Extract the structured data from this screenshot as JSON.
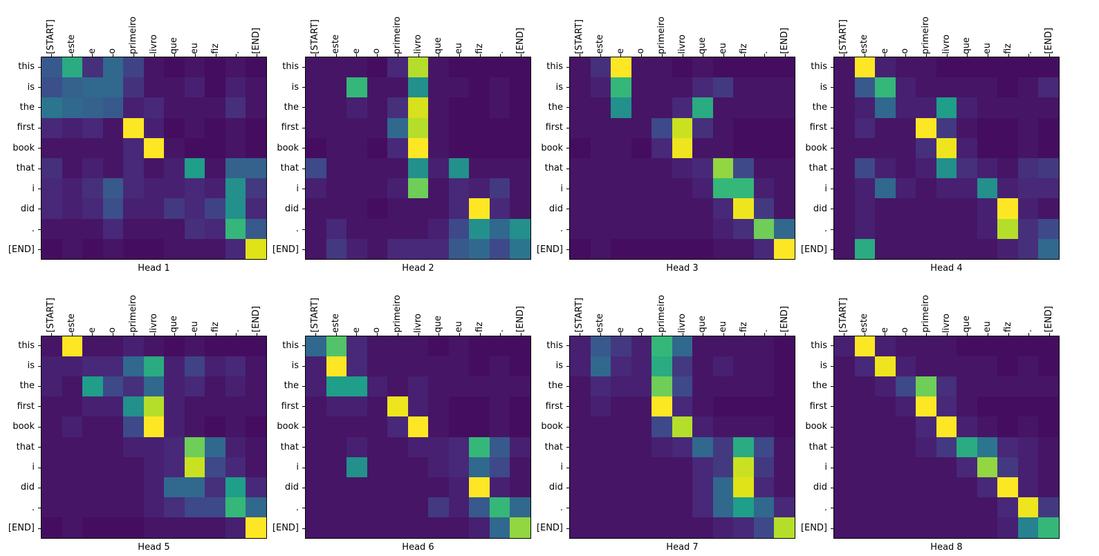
{
  "figure": {
    "background": "#ffffff",
    "colormap": "viridis",
    "colormap_min_color": "#440154",
    "colormap_max_color": "#fde725"
  },
  "chart_data": {
    "type": "heatmap",
    "colormap": "viridis",
    "x_labels": [
      "[START]",
      "este",
      "e",
      "o",
      "primeiro",
      "livro",
      "que",
      "eu",
      "fiz",
      ".",
      "[END]"
    ],
    "y_labels": [
      "this",
      "is",
      "the",
      "first",
      "book",
      "that",
      "i",
      "did",
      ".",
      "[END]"
    ],
    "value_range": [
      0,
      1
    ],
    "heads": [
      {
        "title": "Head 1",
        "values": [
          [
            0.25,
            0.55,
            0.12,
            0.3,
            0.18,
            0.05,
            0.03,
            0.05,
            0.03,
            0.05,
            0.03
          ],
          [
            0.22,
            0.28,
            0.3,
            0.3,
            0.13,
            0.05,
            0.05,
            0.08,
            0.03,
            0.08,
            0.05
          ],
          [
            0.35,
            0.3,
            0.28,
            0.25,
            0.08,
            0.1,
            0.05,
            0.05,
            0.05,
            0.12,
            0.05
          ],
          [
            0.1,
            0.08,
            0.1,
            0.05,
            1.0,
            0.08,
            0.03,
            0.05,
            0.03,
            0.05,
            0.03
          ],
          [
            0.05,
            0.05,
            0.05,
            0.05,
            0.1,
            1.0,
            0.05,
            0.03,
            0.03,
            0.05,
            0.03
          ],
          [
            0.12,
            0.05,
            0.08,
            0.05,
            0.1,
            0.05,
            0.08,
            0.5,
            0.05,
            0.28,
            0.28
          ],
          [
            0.1,
            0.08,
            0.12,
            0.25,
            0.1,
            0.08,
            0.08,
            0.1,
            0.08,
            0.45,
            0.15
          ],
          [
            0.1,
            0.08,
            0.1,
            0.22,
            0.08,
            0.08,
            0.15,
            0.1,
            0.18,
            0.45,
            0.1
          ],
          [
            0.05,
            0.05,
            0.05,
            0.1,
            0.05,
            0.05,
            0.05,
            0.12,
            0.1,
            0.6,
            0.25
          ],
          [
            0.03,
            0.05,
            0.03,
            0.05,
            0.03,
            0.03,
            0.05,
            0.05,
            0.05,
            0.1,
            0.9
          ]
        ]
      },
      {
        "title": "Head 2",
        "values": [
          [
            0.05,
            0.05,
            0.05,
            0.03,
            0.1,
            0.8,
            0.05,
            0.03,
            0.03,
            0.03,
            0.03
          ],
          [
            0.05,
            0.05,
            0.6,
            0.05,
            0.05,
            0.45,
            0.05,
            0.05,
            0.03,
            0.05,
            0.03
          ],
          [
            0.05,
            0.05,
            0.08,
            0.05,
            0.12,
            0.88,
            0.05,
            0.03,
            0.03,
            0.05,
            0.03
          ],
          [
            0.05,
            0.05,
            0.05,
            0.05,
            0.3,
            0.8,
            0.05,
            0.03,
            0.03,
            0.03,
            0.03
          ],
          [
            0.03,
            0.05,
            0.05,
            0.03,
            0.1,
            1.0,
            0.05,
            0.03,
            0.03,
            0.03,
            0.03
          ],
          [
            0.2,
            0.05,
            0.05,
            0.05,
            0.05,
            0.45,
            0.08,
            0.45,
            0.05,
            0.05,
            0.05
          ],
          [
            0.08,
            0.05,
            0.05,
            0.05,
            0.08,
            0.7,
            0.05,
            0.1,
            0.08,
            0.15,
            0.05
          ],
          [
            0.05,
            0.05,
            0.05,
            0.03,
            0.05,
            0.05,
            0.05,
            0.1,
            1.0,
            0.1,
            0.05
          ],
          [
            0.05,
            0.1,
            0.05,
            0.05,
            0.05,
            0.05,
            0.08,
            0.2,
            0.45,
            0.3,
            0.45
          ],
          [
            0.05,
            0.15,
            0.08,
            0.05,
            0.1,
            0.1,
            0.1,
            0.25,
            0.3,
            0.2,
            0.35
          ]
        ]
      },
      {
        "title": "Head 3",
        "values": [
          [
            0.05,
            0.12,
            1.0,
            0.05,
            0.05,
            0.03,
            0.05,
            0.03,
            0.03,
            0.03,
            0.03
          ],
          [
            0.05,
            0.08,
            0.6,
            0.05,
            0.05,
            0.05,
            0.1,
            0.15,
            0.05,
            0.05,
            0.05
          ],
          [
            0.05,
            0.05,
            0.45,
            0.05,
            0.05,
            0.1,
            0.55,
            0.05,
            0.05,
            0.05,
            0.05
          ],
          [
            0.05,
            0.05,
            0.05,
            0.05,
            0.2,
            0.85,
            0.12,
            0.05,
            0.03,
            0.03,
            0.03
          ],
          [
            0.03,
            0.05,
            0.05,
            0.03,
            0.1,
            0.95,
            0.05,
            0.05,
            0.03,
            0.03,
            0.03
          ],
          [
            0.05,
            0.05,
            0.05,
            0.05,
            0.05,
            0.08,
            0.1,
            0.75,
            0.2,
            0.05,
            0.05
          ],
          [
            0.05,
            0.05,
            0.05,
            0.05,
            0.05,
            0.05,
            0.08,
            0.6,
            0.6,
            0.08,
            0.05
          ],
          [
            0.05,
            0.05,
            0.05,
            0.05,
            0.05,
            0.05,
            0.05,
            0.1,
            0.95,
            0.15,
            0.05
          ],
          [
            0.05,
            0.05,
            0.05,
            0.05,
            0.05,
            0.05,
            0.05,
            0.08,
            0.12,
            0.7,
            0.3
          ],
          [
            0.03,
            0.05,
            0.03,
            0.03,
            0.03,
            0.03,
            0.03,
            0.05,
            0.05,
            0.1,
            1.0
          ]
        ]
      },
      {
        "title": "Head 4",
        "values": [
          [
            0.05,
            1.0,
            0.08,
            0.05,
            0.05,
            0.03,
            0.03,
            0.03,
            0.03,
            0.03,
            0.03
          ],
          [
            0.05,
            0.25,
            0.6,
            0.08,
            0.05,
            0.05,
            0.05,
            0.05,
            0.03,
            0.05,
            0.1
          ],
          [
            0.05,
            0.08,
            0.3,
            0.08,
            0.08,
            0.5,
            0.08,
            0.05,
            0.05,
            0.05,
            0.05
          ],
          [
            0.05,
            0.1,
            0.05,
            0.05,
            1.0,
            0.15,
            0.05,
            0.03,
            0.03,
            0.05,
            0.03
          ],
          [
            0.05,
            0.05,
            0.05,
            0.05,
            0.12,
            0.95,
            0.08,
            0.03,
            0.03,
            0.05,
            0.03
          ],
          [
            0.05,
            0.2,
            0.08,
            0.05,
            0.08,
            0.45,
            0.12,
            0.08,
            0.05,
            0.12,
            0.15
          ],
          [
            0.05,
            0.08,
            0.3,
            0.08,
            0.05,
            0.08,
            0.08,
            0.45,
            0.08,
            0.1,
            0.1
          ],
          [
            0.05,
            0.08,
            0.05,
            0.05,
            0.05,
            0.05,
            0.05,
            0.08,
            1.0,
            0.08,
            0.05
          ],
          [
            0.05,
            0.08,
            0.05,
            0.05,
            0.05,
            0.05,
            0.05,
            0.08,
            0.8,
            0.12,
            0.2
          ],
          [
            0.05,
            0.55,
            0.05,
            0.05,
            0.05,
            0.05,
            0.05,
            0.05,
            0.08,
            0.12,
            0.3
          ]
        ]
      },
      {
        "title": "Head 5",
        "values": [
          [
            0.05,
            1.0,
            0.05,
            0.05,
            0.08,
            0.05,
            0.03,
            0.05,
            0.03,
            0.03,
            0.03
          ],
          [
            0.08,
            0.08,
            0.1,
            0.1,
            0.3,
            0.55,
            0.08,
            0.18,
            0.08,
            0.1,
            0.05
          ],
          [
            0.08,
            0.05,
            0.5,
            0.2,
            0.12,
            0.3,
            0.08,
            0.1,
            0.05,
            0.08,
            0.05
          ],
          [
            0.05,
            0.05,
            0.08,
            0.08,
            0.45,
            0.8,
            0.08,
            0.05,
            0.05,
            0.05,
            0.05
          ],
          [
            0.05,
            0.08,
            0.05,
            0.05,
            0.2,
            1.0,
            0.08,
            0.05,
            0.03,
            0.05,
            0.03
          ],
          [
            0.05,
            0.05,
            0.05,
            0.05,
            0.08,
            0.08,
            0.1,
            0.7,
            0.3,
            0.08,
            0.05
          ],
          [
            0.05,
            0.05,
            0.05,
            0.05,
            0.05,
            0.08,
            0.1,
            0.85,
            0.2,
            0.1,
            0.05
          ],
          [
            0.05,
            0.05,
            0.05,
            0.05,
            0.05,
            0.08,
            0.3,
            0.3,
            0.12,
            0.5,
            0.1
          ],
          [
            0.05,
            0.05,
            0.05,
            0.05,
            0.05,
            0.08,
            0.12,
            0.2,
            0.2,
            0.6,
            0.3
          ],
          [
            0.03,
            0.05,
            0.03,
            0.03,
            0.03,
            0.05,
            0.05,
            0.05,
            0.05,
            0.08,
            1.0
          ]
        ]
      },
      {
        "title": "Head 6",
        "values": [
          [
            0.3,
            0.65,
            0.1,
            0.05,
            0.05,
            0.05,
            0.03,
            0.05,
            0.03,
            0.03,
            0.03
          ],
          [
            0.08,
            1.0,
            0.1,
            0.05,
            0.05,
            0.05,
            0.05,
            0.05,
            0.03,
            0.05,
            0.03
          ],
          [
            0.08,
            0.5,
            0.5,
            0.08,
            0.05,
            0.08,
            0.05,
            0.05,
            0.05,
            0.05,
            0.05
          ],
          [
            0.05,
            0.08,
            0.08,
            0.05,
            0.95,
            0.08,
            0.05,
            0.03,
            0.03,
            0.05,
            0.03
          ],
          [
            0.05,
            0.05,
            0.05,
            0.05,
            0.1,
            1.0,
            0.05,
            0.03,
            0.03,
            0.05,
            0.03
          ],
          [
            0.05,
            0.05,
            0.08,
            0.05,
            0.05,
            0.08,
            0.08,
            0.1,
            0.6,
            0.25,
            0.08
          ],
          [
            0.05,
            0.05,
            0.45,
            0.05,
            0.05,
            0.05,
            0.08,
            0.1,
            0.3,
            0.2,
            0.05
          ],
          [
            0.05,
            0.05,
            0.05,
            0.05,
            0.05,
            0.05,
            0.05,
            0.08,
            1.0,
            0.08,
            0.05
          ],
          [
            0.05,
            0.05,
            0.05,
            0.05,
            0.05,
            0.05,
            0.15,
            0.08,
            0.25,
            0.6,
            0.3
          ],
          [
            0.05,
            0.05,
            0.05,
            0.05,
            0.05,
            0.05,
            0.05,
            0.05,
            0.08,
            0.3,
            0.75
          ]
        ]
      },
      {
        "title": "Head 7",
        "values": [
          [
            0.08,
            0.25,
            0.15,
            0.08,
            0.6,
            0.3,
            0.05,
            0.05,
            0.05,
            0.05,
            0.03
          ],
          [
            0.08,
            0.3,
            0.1,
            0.08,
            0.55,
            0.15,
            0.05,
            0.08,
            0.05,
            0.05,
            0.03
          ],
          [
            0.05,
            0.1,
            0.08,
            0.08,
            0.7,
            0.2,
            0.05,
            0.05,
            0.05,
            0.05,
            0.03
          ],
          [
            0.05,
            0.08,
            0.05,
            0.05,
            1.0,
            0.1,
            0.05,
            0.03,
            0.03,
            0.03,
            0.03
          ],
          [
            0.05,
            0.05,
            0.05,
            0.05,
            0.2,
            0.8,
            0.08,
            0.05,
            0.05,
            0.05,
            0.03
          ],
          [
            0.05,
            0.05,
            0.05,
            0.05,
            0.08,
            0.1,
            0.3,
            0.15,
            0.55,
            0.2,
            0.05
          ],
          [
            0.05,
            0.05,
            0.05,
            0.05,
            0.05,
            0.05,
            0.1,
            0.15,
            0.85,
            0.15,
            0.05
          ],
          [
            0.05,
            0.05,
            0.05,
            0.05,
            0.05,
            0.05,
            0.1,
            0.3,
            0.9,
            0.1,
            0.05
          ],
          [
            0.05,
            0.05,
            0.05,
            0.05,
            0.05,
            0.05,
            0.1,
            0.3,
            0.5,
            0.3,
            0.1
          ],
          [
            0.05,
            0.05,
            0.05,
            0.05,
            0.05,
            0.05,
            0.05,
            0.08,
            0.1,
            0.2,
            0.8
          ]
        ]
      },
      {
        "title": "Head 8",
        "values": [
          [
            0.08,
            1.0,
            0.08,
            0.05,
            0.05,
            0.05,
            0.03,
            0.03,
            0.03,
            0.03,
            0.03
          ],
          [
            0.05,
            0.1,
            0.95,
            0.08,
            0.05,
            0.05,
            0.05,
            0.05,
            0.03,
            0.05,
            0.03
          ],
          [
            0.05,
            0.05,
            0.08,
            0.2,
            0.7,
            0.12,
            0.05,
            0.05,
            0.05,
            0.05,
            0.05
          ],
          [
            0.05,
            0.05,
            0.05,
            0.08,
            1.0,
            0.1,
            0.05,
            0.03,
            0.03,
            0.03,
            0.03
          ],
          [
            0.05,
            0.05,
            0.05,
            0.05,
            0.1,
            1.0,
            0.08,
            0.05,
            0.03,
            0.05,
            0.03
          ],
          [
            0.05,
            0.05,
            0.05,
            0.05,
            0.08,
            0.15,
            0.55,
            0.35,
            0.1,
            0.08,
            0.05
          ],
          [
            0.05,
            0.05,
            0.05,
            0.05,
            0.05,
            0.05,
            0.1,
            0.75,
            0.15,
            0.08,
            0.05
          ],
          [
            0.05,
            0.05,
            0.05,
            0.05,
            0.05,
            0.05,
            0.05,
            0.1,
            1.0,
            0.08,
            0.05
          ],
          [
            0.05,
            0.05,
            0.05,
            0.05,
            0.05,
            0.05,
            0.05,
            0.05,
            0.1,
            0.95,
            0.15
          ],
          [
            0.05,
            0.05,
            0.05,
            0.05,
            0.05,
            0.05,
            0.05,
            0.05,
            0.08,
            0.4,
            0.6
          ]
        ]
      }
    ]
  }
}
